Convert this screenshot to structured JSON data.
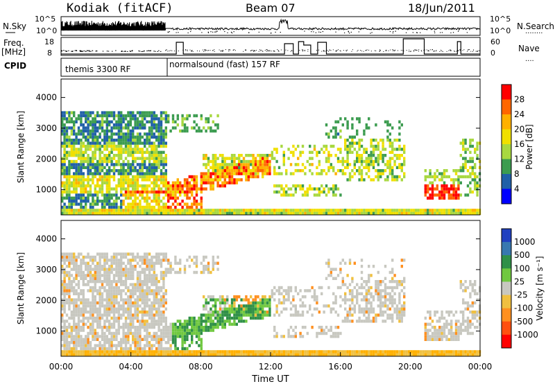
{
  "header": {
    "radar": "Kodiak (fitACF)",
    "beam": "Beam 07",
    "date": "18/Jun/2011"
  },
  "noise_panel": {
    "left_label": "N.Sky",
    "right_label": "N.Search",
    "right_legend_dots": "........",
    "left_ticks": [
      "10^5",
      "10^0"
    ],
    "right_ticks": [
      "10^5",
      "10^0"
    ]
  },
  "freq_panel": {
    "left_label_1": "Freq.",
    "left_label_2": "[MHz]",
    "right_label": "Nave",
    "right_legend_dots": "....",
    "left_ticks": [
      "18",
      "8"
    ],
    "right_ticks": [
      "60",
      "0"
    ]
  },
  "cpid_panel": {
    "label": "CPID",
    "programs": [
      {
        "name": "themis 3300 RF",
        "start_hour": 0
      },
      {
        "name": "normalsound (fast) 157 RF",
        "start_hour": 6
      }
    ]
  },
  "x_axis": {
    "label": "Time UT",
    "ticks": [
      "00:00",
      "04:00",
      "08:00",
      "12:00",
      "16:00",
      "20:00",
      "00:00"
    ],
    "range_hours": [
      0,
      24
    ]
  },
  "chart_data": [
    {
      "type": "heatmap",
      "name": "power",
      "ylabel": "Slant Range [km]",
      "ylim": [
        180,
        4600
      ],
      "yticks": [
        1000,
        2000,
        3000,
        4000
      ],
      "ytick_labels": [
        "1000",
        "2000",
        "3000",
        "4000"
      ],
      "colorbar_label": "Power [dB]",
      "colorbar_levels": [
        "28",
        "24",
        "20",
        "16",
        "12",
        "8",
        "4"
      ],
      "colorbar_colors": [
        "#ff0000",
        "#ff6600",
        "#ffb000",
        "#f0e000",
        "#a8d840",
        "#3c9c50",
        "#2060a8",
        "#0000ff"
      ]
    },
    {
      "type": "heatmap",
      "name": "velocity",
      "ylabel": "Slant Range [km]",
      "ylim": [
        180,
        4600
      ],
      "yticks": [
        1000,
        2000,
        3000,
        4000
      ],
      "ytick_labels": [
        "1000",
        "2000",
        "3000",
        "4000"
      ],
      "colorbar_label": "Velocity [m s⁻¹]",
      "colorbar_levels": [
        "1000",
        "500",
        "100",
        "25",
        "-25",
        "-100",
        "-500",
        "-1000"
      ],
      "colorbar_colors": [
        "#2040c0",
        "#3878b0",
        "#309048",
        "#70c840",
        "#c8c8c0",
        "#f0c040",
        "#ff9020",
        "#ff5010",
        "#ff0000"
      ]
    }
  ]
}
